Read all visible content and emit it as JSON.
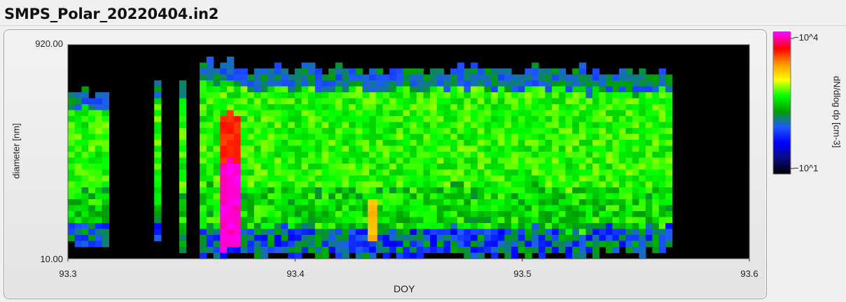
{
  "window": {
    "title": "SMPS_Polar_20220404.in2"
  },
  "colors": {
    "plot_background": "#000000",
    "panel_background": "#e8e8e8",
    "colormap": [
      "#000000",
      "#0a0a80",
      "#0000ff",
      "#1e5aff",
      "#00a000",
      "#00ff00",
      "#ffff00",
      "#ff9900",
      "#ff0000",
      "#ff00ff"
    ]
  },
  "chart_data": {
    "type": "heatmap",
    "title": "SMPS_Polar_20220404.in2",
    "xlabel": "DOY",
    "ylabel": "diameter [nm]",
    "colorbar_label": "dN/dlog dp [cm-3]",
    "colorbar_ticks": [
      "10^4",
      "10^1"
    ],
    "colorbar_range": [
      10,
      10000
    ],
    "colorbar_scale": "log",
    "xlim": [
      93.3,
      93.6
    ],
    "ylim": [
      10.0,
      920.0
    ],
    "yscale": "log",
    "xticks": [
      "93.3",
      "93.4",
      "93.5",
      "93.6"
    ],
    "yticks": [
      "920.00",
      "10.00"
    ],
    "grid": false,
    "band_note_unused": "",
    "columns": [
      {
        "x_start": 93.3,
        "x_end": 93.318,
        "d_min": 14,
        "d_max": 330,
        "peak": "green"
      },
      {
        "x_start": 93.338,
        "x_end": 93.341,
        "d_min": 15,
        "d_max": 380,
        "peak": "green"
      },
      {
        "x_start": 93.349,
        "x_end": 93.352,
        "d_min": 12,
        "d_max": 390,
        "peak": "green"
      },
      {
        "x_start": 93.358,
        "x_end": 93.376,
        "d_min": 11,
        "d_max": 600,
        "peak": "magenta"
      },
      {
        "x_start": 93.376,
        "x_end": 93.525,
        "d_min": 11,
        "d_max": 520,
        "peak": "green"
      },
      {
        "x_start": 93.432,
        "x_end": 93.436,
        "d_min": 16,
        "d_max": 30,
        "peak": "orange"
      },
      {
        "x_start": 93.525,
        "x_end": 93.528,
        "d_min": 10,
        "d_max": 620,
        "peak": "green"
      },
      {
        "x_start": 93.528,
        "x_end": 93.566,
        "d_min": 12,
        "d_max": 480,
        "peak": "green"
      }
    ]
  }
}
